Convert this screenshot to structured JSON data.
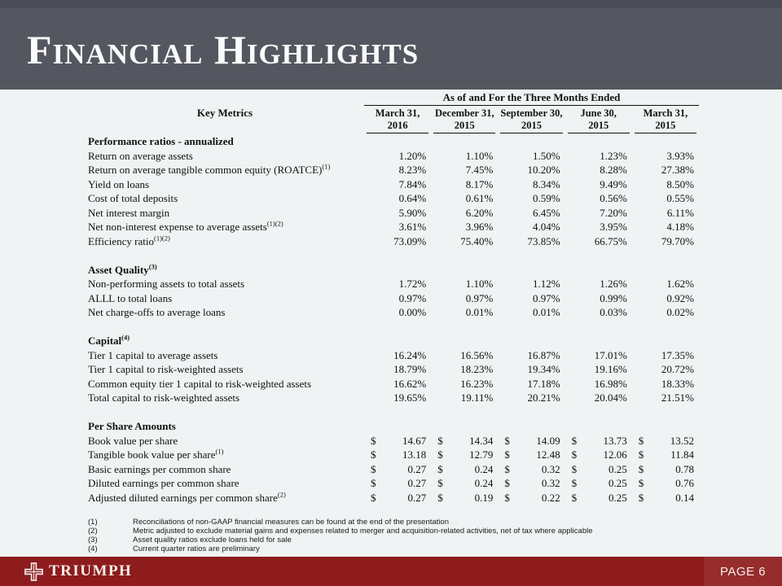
{
  "colors": {
    "header_bg": "#54575f",
    "header_strip": "#4a4d55",
    "body_bg": "#eff3f4",
    "footer_bg": "#8e1c1c",
    "title_ink": "#fbfbfb"
  },
  "header": {
    "title": "Financial Highlights"
  },
  "table": {
    "key_metrics_label": "Key Metrics",
    "span_header": "As of and For the Three Months Ended",
    "columns": [
      {
        "month": "March 31,",
        "year": "2016"
      },
      {
        "month": "December 31,",
        "year": "2015"
      },
      {
        "month": "September 30,",
        "year": "2015"
      },
      {
        "month": "June 30,",
        "year": "2015"
      },
      {
        "month": "March 31,",
        "year": "2015"
      }
    ],
    "sections": [
      {
        "title": "Performance ratios - annualized",
        "title_sup": "",
        "rows": [
          {
            "label": "Return on average assets",
            "sup": "",
            "currency": "",
            "values": [
              "1.20%",
              "1.10%",
              "1.50%",
              "1.23%",
              "3.93%"
            ]
          },
          {
            "label": "Return on average tangible common equity (ROATCE)",
            "sup": "(1)",
            "currency": "",
            "values": [
              "8.23%",
              "7.45%",
              "10.20%",
              "8.28%",
              "27.38%"
            ]
          },
          {
            "label": "Yield on loans",
            "sup": "",
            "currency": "",
            "values": [
              "7.84%",
              "8.17%",
              "8.34%",
              "9.49%",
              "8.50%"
            ]
          },
          {
            "label": "Cost of total deposits",
            "sup": "",
            "currency": "",
            "values": [
              "0.64%",
              "0.61%",
              "0.59%",
              "0.56%",
              "0.55%"
            ]
          },
          {
            "label": "Net interest margin",
            "sup": "",
            "currency": "",
            "values": [
              "5.90%",
              "6.20%",
              "6.45%",
              "7.20%",
              "6.11%"
            ]
          },
          {
            "label": "Net non-interest expense to average assets",
            "sup": "(1)(2)",
            "currency": "",
            "values": [
              "3.61%",
              "3.96%",
              "4.04%",
              "3.95%",
              "4.18%"
            ]
          },
          {
            "label": "Efficiency ratio",
            "sup": "(1)(2)",
            "currency": "",
            "values": [
              "73.09%",
              "75.40%",
              "73.85%",
              "66.75%",
              "79.70%"
            ]
          }
        ]
      },
      {
        "title": "Asset Quality",
        "title_sup": "(3)",
        "rows": [
          {
            "label": "Non-performing assets to total assets",
            "sup": "",
            "currency": "",
            "values": [
              "1.72%",
              "1.10%",
              "1.12%",
              "1.26%",
              "1.62%"
            ]
          },
          {
            "label": "ALLL to total loans",
            "sup": "",
            "currency": "",
            "values": [
              "0.97%",
              "0.97%",
              "0.97%",
              "0.99%",
              "0.92%"
            ]
          },
          {
            "label": "Net charge-offs to average loans",
            "sup": "",
            "currency": "",
            "values": [
              "0.00%",
              "0.01%",
              "0.01%",
              "0.03%",
              "0.02%"
            ]
          }
        ]
      },
      {
        "title": "Capital",
        "title_sup": "(4)",
        "rows": [
          {
            "label": "Tier 1 capital to average assets",
            "sup": "",
            "currency": "",
            "values": [
              "16.24%",
              "16.56%",
              "16.87%",
              "17.01%",
              "17.35%"
            ]
          },
          {
            "label": "Tier 1 capital to risk-weighted assets",
            "sup": "",
            "currency": "",
            "values": [
              "18.79%",
              "18.23%",
              "19.34%",
              "19.16%",
              "20.72%"
            ]
          },
          {
            "label": "Common equity tier 1 capital to risk-weighted assets",
            "sup": "",
            "currency": "",
            "values": [
              "16.62%",
              "16.23%",
              "17.18%",
              "16.98%",
              "18.33%"
            ]
          },
          {
            "label": "Total capital to risk-weighted assets",
            "sup": "",
            "currency": "",
            "values": [
              "19.65%",
              "19.11%",
              "20.21%",
              "20.04%",
              "21.51%"
            ]
          }
        ]
      },
      {
        "title": "Per Share Amounts",
        "title_sup": "",
        "rows": [
          {
            "label": "Book value per share",
            "sup": "",
            "currency": "$",
            "values": [
              "14.67",
              "14.34",
              "14.09",
              "13.73",
              "13.52"
            ]
          },
          {
            "label": "Tangible book value per share",
            "sup": "(1)",
            "currency": "$",
            "values": [
              "13.18",
              "12.79",
              "12.48",
              "12.06",
              "11.84"
            ]
          },
          {
            "label": "Basic earnings per common share",
            "sup": "",
            "currency": "$",
            "values": [
              "0.27",
              "0.24",
              "0.32",
              "0.25",
              "0.78"
            ]
          },
          {
            "label": "Diluted earnings per common share",
            "sup": "",
            "currency": "$",
            "values": [
              "0.27",
              "0.24",
              "0.32",
              "0.25",
              "0.76"
            ]
          },
          {
            "label": "Adjusted diluted earnings per common share",
            "sup": "(2)",
            "currency": "$",
            "values": [
              "0.27",
              "0.19",
              "0.22",
              "0.25",
              "0.14"
            ]
          }
        ]
      }
    ]
  },
  "footnotes": [
    {
      "num": "(1)",
      "text": "Reconciliations of non-GAAP financial measures can be found at the end of the presentation"
    },
    {
      "num": "(2)",
      "text": "Metric adjusted to exclude material gains and expenses related to merger and acquisition-related activities, net of tax where applicable"
    },
    {
      "num": "(3)",
      "text": "Asset quality ratios exclude loans held for sale"
    },
    {
      "num": "(4)",
      "text": "Current quarter ratios are preliminary"
    }
  ],
  "footer": {
    "brand": "TRIUMPH",
    "page_label": "PAGE 6"
  }
}
